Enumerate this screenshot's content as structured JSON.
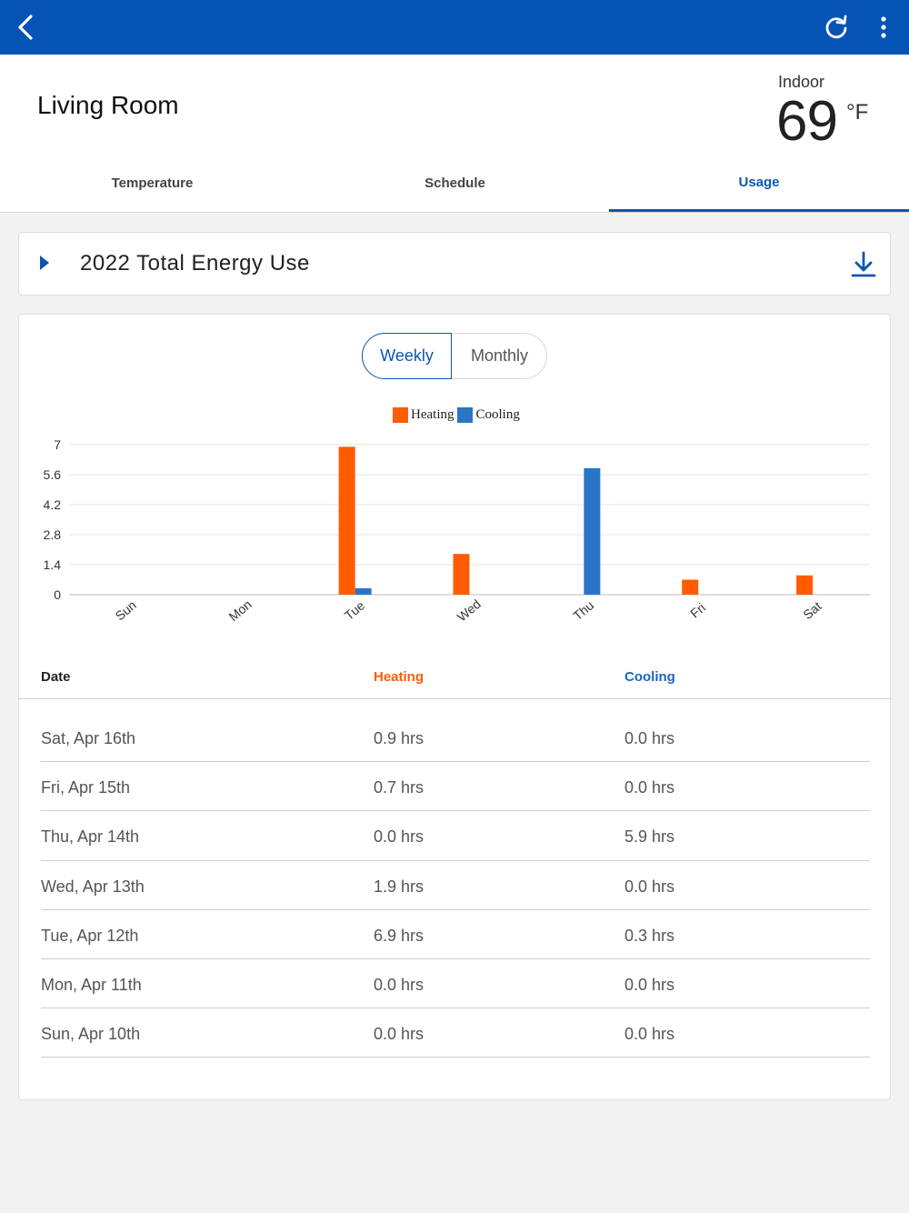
{
  "topbar": {
    "back_icon": "chevron-left-icon",
    "refresh_icon": "refresh-icon",
    "more_icon": "more-vertical-icon",
    "background": "#0554b5"
  },
  "header": {
    "room_name": "Living Room",
    "indoor_label": "Indoor",
    "indoor_temp": "69",
    "indoor_unit": "°F"
  },
  "tabs": [
    {
      "label": "Temperature",
      "active": false
    },
    {
      "label": "Schedule",
      "active": false
    },
    {
      "label": "Usage",
      "active": true
    }
  ],
  "energy_card": {
    "title": "2022 Total Energy Use",
    "expand_icon": "triangle-right-icon",
    "download_icon": "download-icon"
  },
  "segment": {
    "weekly_label": "Weekly",
    "monthly_label": "Monthly",
    "selected": "Weekly"
  },
  "chart_data": {
    "type": "bar",
    "categories": [
      "Sun",
      "Mon",
      "Tue",
      "Wed",
      "Thu",
      "Fri",
      "Sat"
    ],
    "series": [
      {
        "name": "Heating",
        "color": "#ff5c00",
        "values": [
          0,
          0,
          6.9,
          1.9,
          0,
          0.7,
          0.9
        ]
      },
      {
        "name": "Cooling",
        "color": "#2a74c6",
        "values": [
          0,
          0,
          0.3,
          0,
          5.9,
          0,
          0
        ]
      }
    ],
    "yticks": [
      "0",
      "1.4",
      "2.8",
      "4.2",
      "5.6",
      "7"
    ],
    "ylim": [
      0,
      7
    ],
    "legend": "top-center",
    "grid": true
  },
  "table": {
    "headers": {
      "date": "Date",
      "heating": "Heating",
      "cooling": "Cooling"
    },
    "heating_color": "#ff5c00",
    "cooling_color": "#1a66c2",
    "rows": [
      {
        "date": "Sat, Apr 16th",
        "heating": "0.9 hrs",
        "cooling": "0.0 hrs"
      },
      {
        "date": "Fri, Apr 15th",
        "heating": "0.7 hrs",
        "cooling": "0.0 hrs"
      },
      {
        "date": "Thu, Apr 14th",
        "heating": "0.0 hrs",
        "cooling": "5.9 hrs"
      },
      {
        "date": "Wed, Apr 13th",
        "heating": "1.9 hrs",
        "cooling": "0.0 hrs"
      },
      {
        "date": "Tue, Apr 12th",
        "heating": "6.9 hrs",
        "cooling": "0.3 hrs"
      },
      {
        "date": "Mon, Apr 11th",
        "heating": "0.0 hrs",
        "cooling": "0.0 hrs"
      },
      {
        "date": "Sun, Apr 10th",
        "heating": "0.0 hrs",
        "cooling": "0.0 hrs"
      }
    ]
  }
}
